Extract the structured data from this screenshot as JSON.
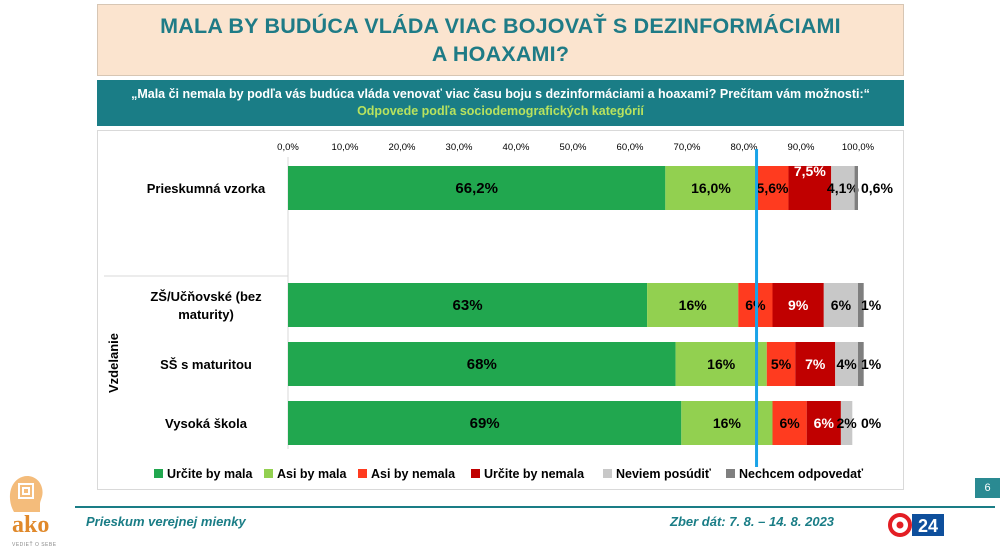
{
  "title": "MALA BY BUDÚCA VLÁDA VIAC BOJOVAŤ S DEZINFORMÁCIAMI\nA HOAXAMI?",
  "question": "„Mala či nemala by podľa vás budúca vláda venovať viac času boju s dezinformáciami a hoaxami? Prečítam vám možnosti:“",
  "subtitle": "Odpovede podľa sociodemografických kategórií",
  "footer": {
    "survey_name": "Prieskum verejnej mienky",
    "collection_dates": "Zber dát: 7. 8. – 14. 8. 2023",
    "page_number": "6",
    "logo_text": "ako",
    "logo_tagline": "VEDIEŤ O SEBE",
    "tv_logo_text": "24"
  },
  "chart_data": {
    "type": "bar",
    "orientation": "horizontal",
    "stacked": true,
    "xlim": [
      0,
      100
    ],
    "x_ticks": [
      "0,0%",
      "10,0%",
      "20,0%",
      "30,0%",
      "40,0%",
      "50,0%",
      "60,0%",
      "70,0%",
      "80,0%",
      "90,0%",
      "100,0%"
    ],
    "group_label": "Vzdelanie",
    "reference_line_value": 82.2,
    "legend_position": "bottom",
    "categories": [
      "Prieskumná vzorka",
      "ZŠ/Učňovské (bez maturity)",
      "SŠ s maturitou",
      "Vysoká škola"
    ],
    "series": [
      {
        "name": "Určite by mala",
        "color": "#21a74f",
        "label_color": "#000000",
        "values": [
          66.2,
          63,
          68,
          69
        ],
        "labels": [
          "66,2%",
          "63%",
          "68%",
          "69%"
        ]
      },
      {
        "name": "Asi by mala",
        "color": "#92d050",
        "label_color": "#000000",
        "values": [
          16.0,
          16,
          16,
          16
        ],
        "labels": [
          "16,0%",
          "16%",
          "16%",
          "16%"
        ]
      },
      {
        "name": "Asi by nemala",
        "color": "#ff3b1f",
        "label_color": "#000000",
        "values": [
          5.6,
          6,
          5,
          6
        ],
        "labels": [
          "5,6%",
          "6%",
          "5%",
          "6%"
        ]
      },
      {
        "name": "Určite by nemala",
        "color": "#c00000",
        "label_color": "#ffffff",
        "values": [
          7.5,
          9,
          7,
          6
        ],
        "labels": [
          "7,5%",
          "9%",
          "7%",
          "6%"
        ]
      },
      {
        "name": "Neviem posúdiť",
        "color": "#c8c8c8",
        "label_color": "#000000",
        "values": [
          4.1,
          6,
          4,
          2
        ],
        "labels": [
          "4,1%",
          "6%",
          "4%",
          "2%"
        ]
      },
      {
        "name": "Nechcem odpovedať",
        "color": "#7f7f7f",
        "label_color": "#000000",
        "values": [
          0.6,
          1,
          1,
          0
        ],
        "labels": [
          "0,6%",
          "1%",
          "1%",
          "0%"
        ]
      }
    ]
  }
}
